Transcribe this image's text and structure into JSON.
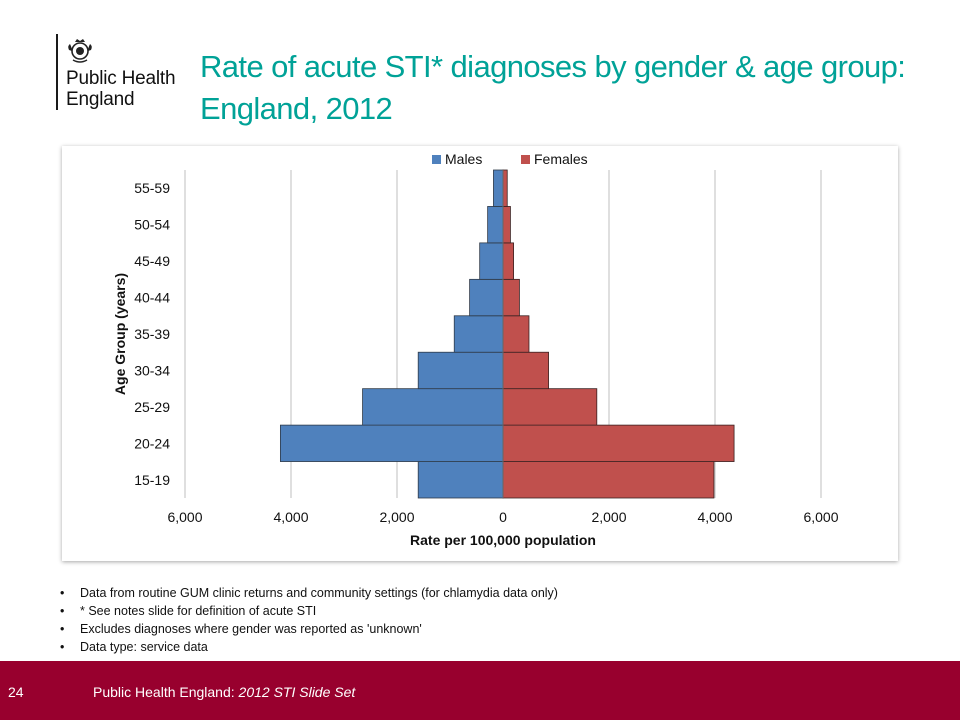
{
  "logo": {
    "line1": "Public Health",
    "line2": "England"
  },
  "title": "Rate of acute STI* diagnoses by gender & age group: England, 2012",
  "chart_data": {
    "type": "bar",
    "orientation": "horizontal",
    "style": "population-pyramid",
    "categories": [
      "15-19",
      "20-24",
      "25-29",
      "30-34",
      "35-39",
      "40-44",
      "45-49",
      "50-54",
      "55-59"
    ],
    "series": [
      {
        "name": "Males",
        "values": [
          1600,
          4200,
          2650,
          1600,
          920,
          630,
          440,
          290,
          180
        ],
        "color": "#4f81bd"
      },
      {
        "name": "Females",
        "values": [
          3980,
          4360,
          1770,
          860,
          490,
          310,
          200,
          140,
          80
        ],
        "color": "#c0504d"
      }
    ],
    "xlabel": "Rate per 100,000 population",
    "ylabel": "Age Group (years)",
    "xlim": [
      -6000,
      6000
    ],
    "xticks": [
      -6000,
      -4000,
      -2000,
      0,
      2000,
      4000,
      6000
    ],
    "xtick_labels": [
      "6,000",
      "4,000",
      "2,000",
      "0",
      "2,000",
      "4,000",
      "6,000"
    ],
    "grid": "vertical",
    "legend": "top-center"
  },
  "notes": [
    "Data from routine GUM clinic returns  and community settings (for chlamydia data only)",
    "* See notes slide for definition of acute STI",
    "Excludes diagnoses where gender was reported as 'unknown'",
    "Data type: service data"
  ],
  "footer": {
    "page_number": "24",
    "org": "Public Health England: ",
    "slide_set": "2012 STI Slide Set",
    "color": "#98002e"
  },
  "colors": {
    "title": "#00a297",
    "male": "#4f81bd",
    "female": "#c0504d",
    "footer": "#98002e"
  }
}
